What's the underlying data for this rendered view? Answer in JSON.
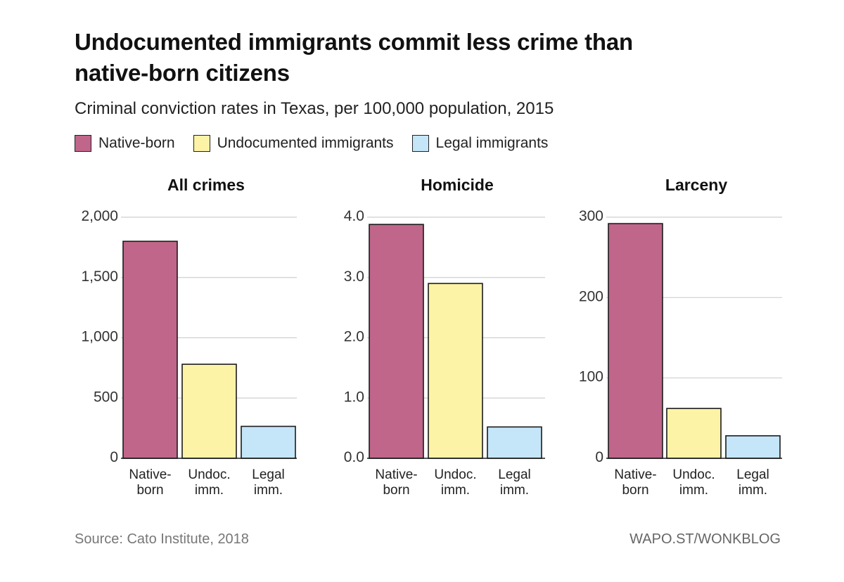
{
  "header": {
    "title": "Undocumented immigrants commit less crime than native-born citizens",
    "subtitle": "Criminal conviction rates in Texas, per 100,000 population, 2015"
  },
  "legend": [
    {
      "label": "Native-born",
      "color": "#c0668a"
    },
    {
      "label": "Undocumented immigrants",
      "color": "#fdf3a6"
    },
    {
      "label": "Legal immigrants",
      "color": "#c4e6f8"
    }
  ],
  "chart_data": [
    {
      "type": "bar",
      "title": "All crimes",
      "categories": [
        [
          "Native-",
          "born"
        ],
        [
          "Undoc.",
          "imm."
        ],
        [
          "Legal",
          "imm."
        ]
      ],
      "values": [
        1800,
        780,
        265
      ],
      "ylim": [
        0,
        2000
      ],
      "yticks": [
        0,
        500,
        1000,
        1500,
        2000
      ],
      "ytick_labels": [
        "0",
        "500",
        "1,000",
        "1,500",
        "2,000"
      ],
      "grid": true
    },
    {
      "type": "bar",
      "title": "Homicide",
      "categories": [
        [
          "Native-",
          "born"
        ],
        [
          "Undoc.",
          "imm."
        ],
        [
          "Legal",
          "imm."
        ]
      ],
      "values": [
        3.88,
        2.9,
        0.52
      ],
      "ylim": [
        0,
        4
      ],
      "yticks": [
        0,
        1,
        2,
        3,
        4
      ],
      "ytick_labels": [
        "0.0",
        "1.0",
        "2.0",
        "3.0",
        "4.0"
      ],
      "grid": true
    },
    {
      "type": "bar",
      "title": "Larceny",
      "categories": [
        [
          "Native-",
          "born"
        ],
        [
          "Undoc.",
          "imm."
        ],
        [
          "Legal",
          "imm."
        ]
      ],
      "values": [
        292,
        62,
        28
      ],
      "ylim": [
        0,
        300
      ],
      "yticks": [
        0,
        100,
        200,
        300
      ],
      "ytick_labels": [
        "0",
        "100",
        "200",
        "300"
      ],
      "grid": true
    }
  ],
  "footer": {
    "source": "Source: Cato Institute, 2018",
    "credit": "WAPO.ST/WONKBLOG"
  }
}
